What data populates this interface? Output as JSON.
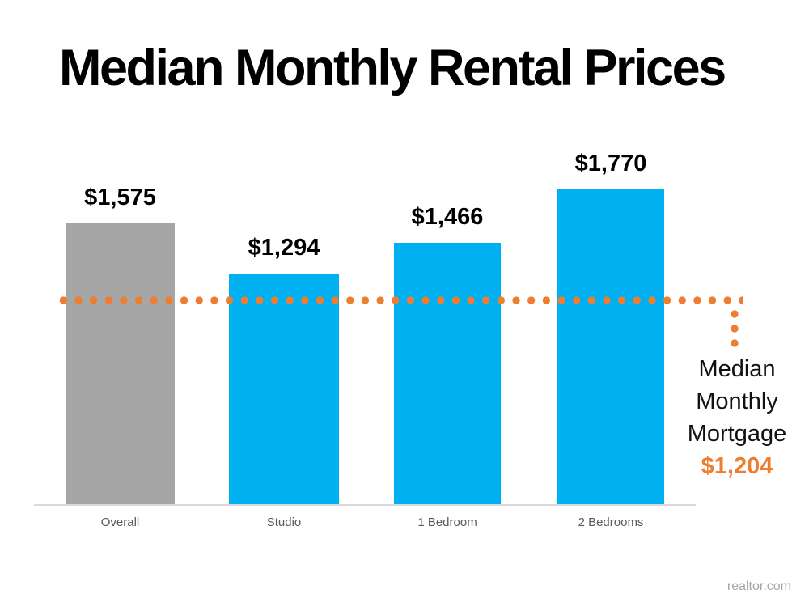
{
  "slide": {
    "title": "Median Monthly Rental Prices"
  },
  "chart_data": {
    "type": "bar",
    "title": "Median Monthly Rental Prices",
    "categories": [
      "Overall",
      "Studio",
      "1 Bedroom",
      "2 Bedrooms"
    ],
    "values": [
      1575,
      1294,
      1466,
      1770
    ],
    "value_labels": [
      "$1,575",
      "$1,294",
      "$1,466",
      "$1,770"
    ],
    "series_colors": [
      "#A6A6A6",
      "#00B0F0",
      "#00B0F0",
      "#00B0F0"
    ],
    "ylim": [
      0,
      1900
    ],
    "grid": false,
    "legend": false,
    "xlabel": "",
    "ylabel": "",
    "reference_line": {
      "value": 1204,
      "style": "dotted",
      "color": "#ED7D31",
      "label_lines": [
        "Median",
        "Monthly",
        "Mortgage"
      ],
      "value_label": "$1,204"
    }
  },
  "footer": {
    "source_label": "realtor.com"
  },
  "colors": {
    "bar_blue": "#00B0F0",
    "bar_gray": "#A6A6A6",
    "accent_orange": "#ED7D31",
    "axis_line": "#D9D9D9",
    "axis_label_text": "#595959",
    "footer_text": "#A6A6A6",
    "title_text": "#000000"
  }
}
